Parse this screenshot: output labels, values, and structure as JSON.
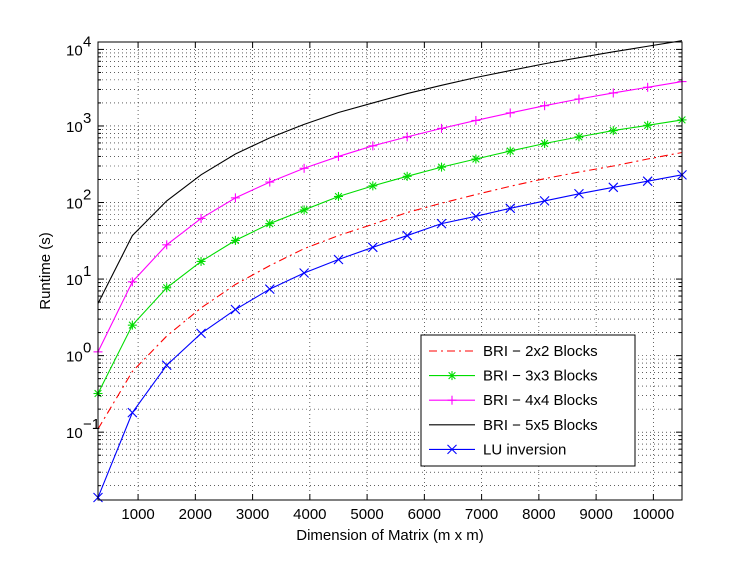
{
  "chart_data": {
    "type": "line",
    "title": "",
    "xlabel": "Dimension of Matrix (m x m)",
    "ylabel": "Runtime (s)",
    "xlim": [
      300,
      10500
    ],
    "ylim": [
      0.013,
      12500
    ],
    "yscale": "log",
    "grid": true,
    "legend_position": "lower-right",
    "x_ticks": [
      1000,
      2000,
      3000,
      4000,
      5000,
      6000,
      7000,
      8000,
      9000,
      10000
    ],
    "x_tick_labels": [
      "1000",
      "2000",
      "3000",
      "4000",
      "5000",
      "6000",
      "7000",
      "8000",
      "9000",
      "10000"
    ],
    "y_ticks": [
      0.1,
      1,
      10,
      100,
      1000,
      10000
    ],
    "y_tick_labels": [
      {
        "base": "10",
        "exp": "−1"
      },
      {
        "base": "10",
        "exp": "0"
      },
      {
        "base": "10",
        "exp": "1"
      },
      {
        "base": "10",
        "exp": "2"
      },
      {
        "base": "10",
        "exp": "3"
      },
      {
        "base": "10",
        "exp": "4"
      }
    ],
    "x": [
      300,
      900,
      1500,
      2100,
      2700,
      3300,
      3900,
      4500,
      5100,
      5700,
      6300,
      6900,
      7500,
      8100,
      8700,
      9300,
      9900,
      10500
    ],
    "series": [
      {
        "name": "BRI − 2x2 Blocks",
        "color": "#ff0000",
        "line_style": "dashdot",
        "marker": "none",
        "values": [
          0.11,
          0.62,
          1.8,
          4.2,
          8.5,
          15,
          25,
          37,
          52,
          74,
          98,
          127,
          163,
          205,
          250,
          300,
          370,
          450
        ]
      },
      {
        "name": "BRI − 3x3 Blocks",
        "color": "#00dd00",
        "line_style": "solid",
        "marker": "star",
        "values": [
          0.32,
          2.5,
          7.7,
          17,
          32,
          53,
          80,
          120,
          165,
          220,
          290,
          370,
          470,
          590,
          720,
          870,
          1020,
          1200
        ]
      },
      {
        "name": "BRI − 4x4 Blocks",
        "color": "#ff00ff",
        "line_style": "solid",
        "marker": "plus",
        "values": [
          1.12,
          9.2,
          28,
          62,
          115,
          185,
          280,
          400,
          550,
          720,
          930,
          1180,
          1480,
          1840,
          2250,
          2700,
          3200,
          3800
        ]
      },
      {
        "name": "BRI − 5x5 Blocks",
        "color": "#000000",
        "line_style": "solid",
        "marker": "none",
        "values": [
          4.8,
          37,
          105,
          230,
          430,
          700,
          1050,
          1500,
          2000,
          2650,
          3400,
          4300,
          5300,
          6500,
          7800,
          9300,
          11000,
          13000
        ]
      },
      {
        "name": "LU inversion",
        "color": "#0000ff",
        "line_style": "solid",
        "marker": "x",
        "values": [
          0.014,
          0.18,
          0.75,
          1.95,
          4.0,
          7.4,
          12,
          18,
          26,
          37,
          53,
          66,
          84,
          105,
          130,
          158,
          190,
          230
        ]
      }
    ]
  }
}
